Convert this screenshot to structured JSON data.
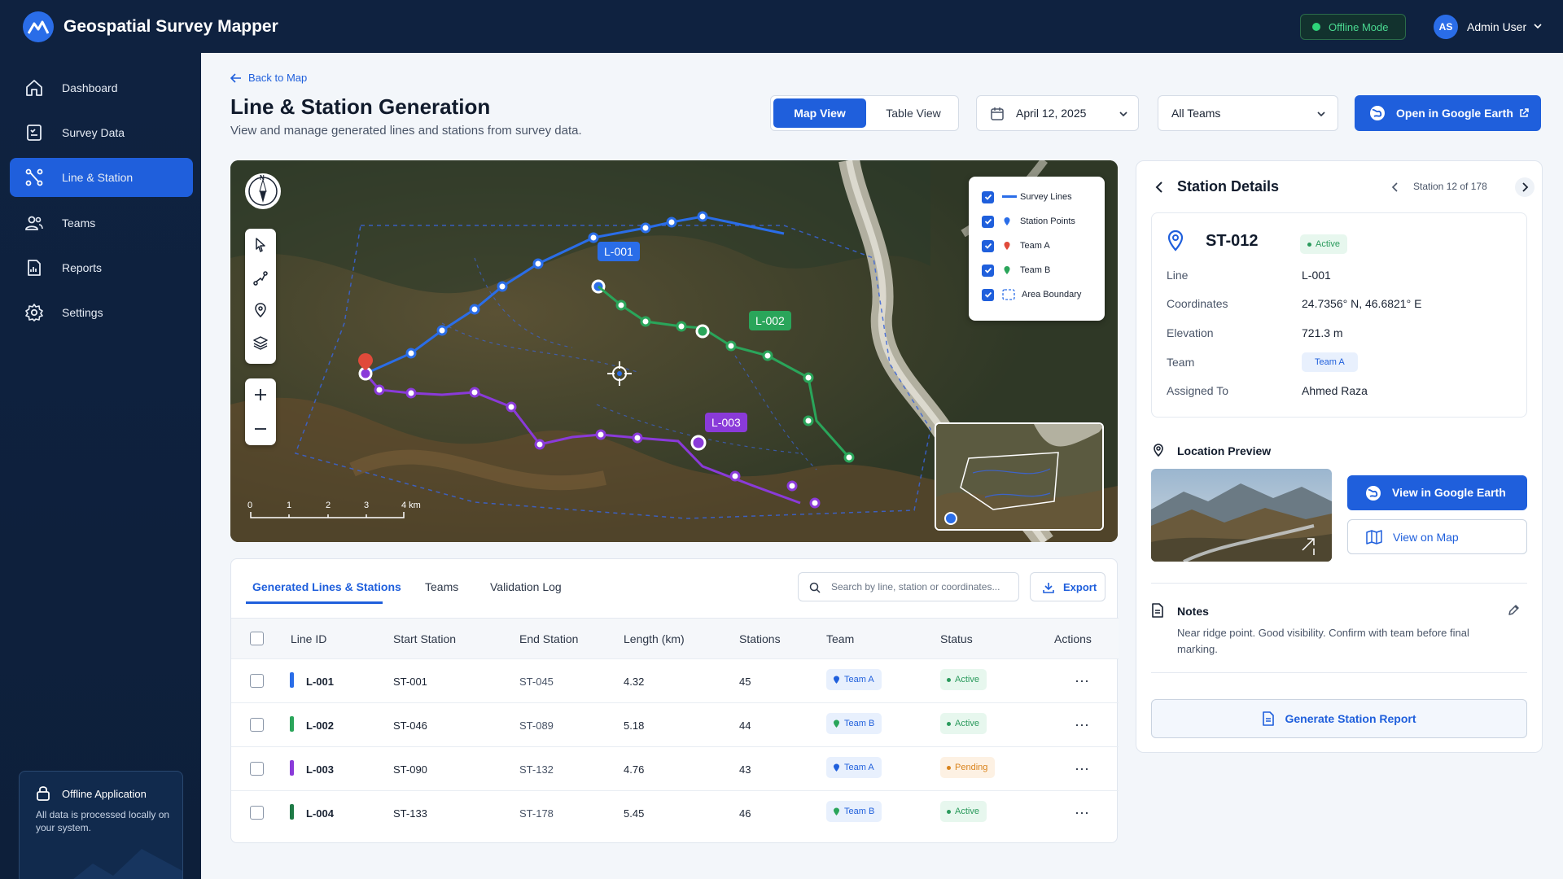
{
  "header": {
    "app_title": "Geospatial Survey Mapper",
    "mode_badge": "Offline Mode",
    "user_initials": "AS",
    "user_name": "Admin User"
  },
  "sidebar": {
    "items": [
      {
        "label": "Dashboard",
        "icon": "home-icon"
      },
      {
        "label": "Survey Data",
        "icon": "clipboard-icon"
      },
      {
        "label": "Line & Station",
        "icon": "route-icon",
        "active": true
      },
      {
        "label": "Teams",
        "icon": "users-icon"
      },
      {
        "label": "Reports",
        "icon": "report-icon"
      },
      {
        "label": "Settings",
        "icon": "gear-icon"
      }
    ],
    "offline_card": {
      "title": "Offline Application",
      "description": "All data is processed locally on your system."
    }
  },
  "page": {
    "back_link": "Back to Map",
    "title": "Line & Station Generation",
    "subtitle": "View and manage generated lines and stations from survey data.",
    "view_toggle": {
      "active": "Map View",
      "inactive": "Table View"
    },
    "date_select": "April 12, 2025",
    "team_select": "All Teams",
    "google_earth_button": "Open in Google Earth"
  },
  "map": {
    "legend": [
      {
        "label": "Survey Lines",
        "checked": true
      },
      {
        "label": "Station Points",
        "checked": true
      },
      {
        "label": "Team A",
        "checked": true
      },
      {
        "label": "Team B",
        "checked": true
      },
      {
        "label": "Area Boundary",
        "checked": true
      }
    ],
    "compass_label": "N",
    "scale_ticks": [
      "0",
      "1",
      "2",
      "3",
      "4 km"
    ],
    "line_labels": [
      "L-001",
      "L-002",
      "L-003"
    ],
    "colors": {
      "line1": "#2a6de8",
      "line2": "#2aa55a",
      "line3": "#8a3ad9",
      "line4": "#1e7a46"
    }
  },
  "table": {
    "tabs": [
      "Generated Lines & Stations",
      "Teams",
      "Validation Log"
    ],
    "active_tab": 0,
    "search_placeholder": "Search by line, station or coordinates...",
    "export_label": "Export",
    "columns": [
      "Line ID",
      "Start Station",
      "End Station",
      "Length (km)",
      "Stations",
      "Team",
      "Status",
      "Actions"
    ],
    "rows": [
      {
        "line_id": "L-001",
        "start": "ST-001",
        "end": "ST-045",
        "length": "4.32",
        "stations": "45",
        "team": "Team A",
        "status": "Active",
        "color": "#2a6de8"
      },
      {
        "line_id": "L-002",
        "start": "ST-046",
        "end": "ST-089",
        "length": "5.18",
        "stations": "44",
        "team": "Team B",
        "status": "Active",
        "color": "#2aa55a"
      },
      {
        "line_id": "L-003",
        "start": "ST-090",
        "end": "ST-132",
        "length": "4.76",
        "stations": "43",
        "team": "Team A",
        "status": "Pending",
        "color": "#8a3ad9"
      },
      {
        "line_id": "L-004",
        "start": "ST-133",
        "end": "ST-178",
        "length": "5.45",
        "stations": "46",
        "team": "Team B",
        "status": "Active",
        "color": "#1e7a46"
      }
    ]
  },
  "station_details": {
    "title": "Station Details",
    "pager": "Station 12 of 178",
    "station_id": "ST-012",
    "status": "Active",
    "fields": {
      "line_label": "Line",
      "line": "L-001",
      "coords_label": "Coordinates",
      "coords": "24.7356° N, 46.6821° E",
      "elevation_label": "Elevation",
      "elevation": "721.3 m",
      "team_label": "Team",
      "team": "Team A",
      "assigned_label": "Assigned To",
      "assigned": "Ahmed Raza"
    },
    "location_preview_title": "Location Preview",
    "view_google_earth": "View in Google Earth",
    "view_on_map": "View on Map",
    "notes_title": "Notes",
    "notes_text": "Near ridge point. Good visibility. Confirm with team before final marking.",
    "generate_report": "Generate Station Report"
  }
}
